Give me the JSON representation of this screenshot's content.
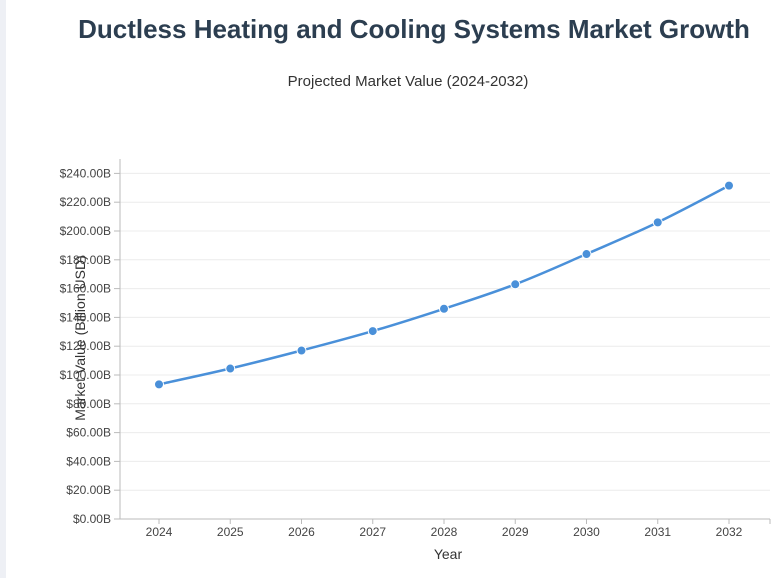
{
  "chart_data": {
    "type": "line",
    "title": "Ductless Heating and Cooling Systems Market Growth",
    "subtitle": "Projected Market Value (2024-2032)",
    "xlabel": "Year",
    "ylabel": "Market Value (Billion USD)",
    "categories": [
      "2024",
      "2025",
      "2026",
      "2027",
      "2028",
      "2029",
      "2030",
      "2031",
      "2032"
    ],
    "series": [
      {
        "values": [
          93.5,
          104.5,
          117.0,
          130.5,
          146.0,
          163.0,
          184.0,
          206.0,
          231.5
        ]
      }
    ],
    "ylim": [
      0,
      250
    ],
    "yticks": [
      0,
      20,
      40,
      60,
      80,
      100,
      120,
      140,
      160,
      180,
      200,
      220,
      240
    ],
    "ytick_labels": [
      "$0.00B",
      "$20.00B",
      "$40.00B",
      "$60.00B",
      "$80.00B",
      "$100.00B",
      "$120.00B",
      "$140.00B",
      "$160.00B",
      "$180.00B",
      "$200.00B",
      "$220.00B",
      "$240.00B"
    ],
    "grid": true,
    "legend": "none",
    "colors": {
      "line": "#4a90d9",
      "point": "#4a90d9",
      "grid": "#ececec",
      "axis": "#bbbbbb"
    }
  }
}
